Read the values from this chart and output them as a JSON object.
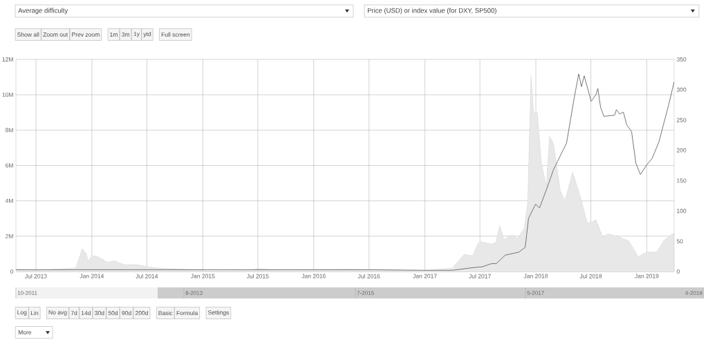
{
  "chart_data": {
    "type": "area",
    "xlim": [
      "2013-04-26",
      "2019-04-01"
    ],
    "xticks": [
      {
        "value": "2013-07-01",
        "label": "Jul 2013"
      },
      {
        "value": "2014-01-01",
        "label": "Jan 2014"
      },
      {
        "value": "2014-07-01",
        "label": "Jul 2014"
      },
      {
        "value": "2015-01-01",
        "label": "Jan 2015"
      },
      {
        "value": "2015-07-01",
        "label": "Jul 2015"
      },
      {
        "value": "2016-01-01",
        "label": "Jan 2016"
      },
      {
        "value": "2016-07-01",
        "label": "Jul 2016"
      },
      {
        "value": "2017-01-01",
        "label": "Jan 2017"
      },
      {
        "value": "2017-07-01",
        "label": "Jul 2017"
      },
      {
        "value": "2018-01-01",
        "label": "Jan 2018"
      },
      {
        "value": "2018-07-01",
        "label": "Jul 2018"
      },
      {
        "value": "2019-01-01",
        "label": "Jan 2019"
      }
    ],
    "ylim": [
      0,
      12000000
    ],
    "yticks": [
      0,
      {
        "value": 2000000,
        "label": "2M"
      },
      {
        "value": 4000000,
        "label": "4M"
      },
      {
        "value": 6000000,
        "label": "6M"
      },
      {
        "value": 8000000,
        "label": "8M"
      },
      {
        "value": 10000000,
        "label": "10M"
      },
      {
        "value": 12000000,
        "label": "12M"
      }
    ],
    "y2lim": [
      0,
      350
    ],
    "y2ticks": [
      0,
      50,
      100,
      150,
      200,
      250,
      300,
      350
    ],
    "grid": true,
    "series": [
      {
        "color": "#e8e8e8",
        "line_style": "dotted",
        "x": [
          "2013-04-26",
          "2013-07-01",
          "2013-11-09",
          "2013-11-30",
          "2013-12-13",
          "2013-12-20",
          "2014-01-02",
          "2014-01-20",
          "2014-02-23",
          "2014-03-15",
          "2014-04-18",
          "2014-05-29",
          "2014-07-06",
          "2014-08-11",
          "2014-12-26",
          "2015-01-10",
          "2015-06-12",
          "2015-06-30",
          "2015-08-25",
          "2016-04-25",
          "2016-07-01",
          "2017-01-01",
          "2017-04-01",
          "2017-05-10",
          "2017-06-08",
          "2017-06-24",
          "2017-07-05",
          "2017-08-04",
          "2017-08-22",
          "2017-09-04",
          "2017-09-18",
          "2017-10-15",
          "2017-11-02",
          "2017-11-24",
          "2017-12-05",
          "2017-12-16",
          "2017-12-25",
          "2018-01-06",
          "2018-01-19",
          "2018-02-04",
          "2018-02-15",
          "2018-02-28",
          "2018-03-23",
          "2018-04-07",
          "2018-05-02",
          "2018-05-29",
          "2018-06-20",
          "2018-07-18",
          "2018-08-09",
          "2018-08-27",
          "2018-09-23",
          "2018-11-02",
          "2018-12-04",
          "2019-01-01",
          "2019-02-03",
          "2019-02-26",
          "2019-03-26",
          "2019-04-01"
        ],
        "values": [
          130000,
          70000,
          200000,
          1300000,
          1030000,
          600000,
          900000,
          840000,
          520000,
          620000,
          390000,
          390000,
          260000,
          190000,
          90000,
          40000,
          60000,
          170000,
          90000,
          130000,
          100000,
          60000,
          200000,
          970000,
          900000,
          1580000,
          1690000,
          1560000,
          1620000,
          2600000,
          1820000,
          2080000,
          1880000,
          2460000,
          3900000,
          11100000,
          8950000,
          9000000,
          6200000,
          4860000,
          7650000,
          7260000,
          4540000,
          4020000,
          5640000,
          4150000,
          2720000,
          2920000,
          1950000,
          2140000,
          2010000,
          1750000,
          840000,
          1100000,
          1100000,
          1750000,
          2140000,
          2140000
        ]
      },
      {
        "type": "line",
        "axis": "y2",
        "color": "#666666",
        "x": [
          "2013-04-26",
          "2014-01-01",
          "2016-07-01",
          "2017-01-01",
          "2017-04-01",
          "2017-06-01",
          "2017-07-10",
          "2017-08-08",
          "2017-08-24",
          "2017-09-22",
          "2017-11-06",
          "2017-11-27",
          "2017-12-08",
          "2017-12-31",
          "2018-01-13",
          "2018-02-04",
          "2018-02-28",
          "2018-04-12",
          "2018-05-07",
          "2018-05-22",
          "2018-05-31",
          "2018-06-09",
          "2018-07-02",
          "2018-07-18",
          "2018-07-24",
          "2018-08-02",
          "2018-08-13",
          "2018-09-17",
          "2018-09-23",
          "2018-10-04",
          "2018-10-16",
          "2018-10-27",
          "2018-11-12",
          "2018-11-26",
          "2018-12-11",
          "2019-01-01",
          "2019-01-19",
          "2019-02-10",
          "2019-03-14",
          "2019-04-01"
        ],
        "values": [
          3,
          3,
          3,
          2,
          2,
          6,
          8,
          13,
          13,
          27,
          32,
          40,
          88,
          111,
          105,
          134,
          168,
          212,
          286,
          326,
          305,
          323,
          281,
          292,
          302,
          271,
          256,
          258,
          267,
          260,
          263,
          242,
          231,
          179,
          160,
          176,
          187,
          214,
          275,
          313
        ]
      }
    ],
    "annotations": [
      "Show all",
      "Zoom out",
      "Prev zoom",
      "1m",
      "3m",
      "1y",
      "ytd",
      "Full screen",
      "10-2011",
      "8-2013",
      "7-2015",
      "5-2017",
      "4-2019",
      "Log",
      "Lin",
      "No avg",
      "7d",
      "14d",
      "30d",
      "50d",
      "90d",
      "200d",
      "Basic",
      "Formula",
      "Settings",
      "More",
      "Average difficulty",
      "Price (USD) or index value (for DXY, SP500)"
    ]
  }
}
